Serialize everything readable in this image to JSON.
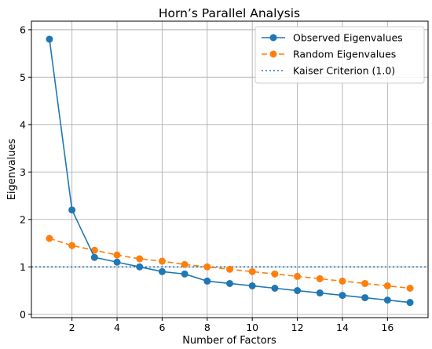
{
  "chart_data": {
    "type": "line",
    "title": "Horn’s Parallel Analysis",
    "xlabel": "Number of Factors",
    "ylabel": "Eigenvalues",
    "xlim": [
      0.2,
      17.8
    ],
    "ylim": [
      -0.07,
      6.18
    ],
    "x_ticks": [
      2,
      4,
      6,
      8,
      10,
      12,
      14,
      16
    ],
    "y_ticks": [
      0,
      1,
      2,
      3,
      4,
      5,
      6
    ],
    "grid": true,
    "legend_position": "top-right",
    "x": [
      1,
      2,
      3,
      4,
      5,
      6,
      7,
      8,
      9,
      10,
      11,
      12,
      13,
      14,
      15,
      16,
      17
    ],
    "series": [
      {
        "name": "Observed Eigenvalues",
        "color": "#1f77b4",
        "line_style": "solid",
        "marker": "circle",
        "values": [
          5.8,
          2.2,
          1.2,
          1.1,
          1.0,
          0.9,
          0.85,
          0.7,
          0.65,
          0.6,
          0.55,
          0.5,
          0.45,
          0.4,
          0.35,
          0.3,
          0.25
        ]
      },
      {
        "name": "Random Eigenvalues",
        "color": "#ff7f0e",
        "line_style": "dashed",
        "marker": "circle",
        "values": [
          1.6,
          1.45,
          1.35,
          1.25,
          1.17,
          1.12,
          1.05,
          1.0,
          0.95,
          0.9,
          0.85,
          0.8,
          0.75,
          0.7,
          0.65,
          0.6,
          0.55
        ]
      }
    ],
    "reference_lines": [
      {
        "name": "Kaiser Criterion (1.0)",
        "y": 1.0,
        "color": "#1f77b4",
        "line_style": "dotted"
      }
    ]
  }
}
